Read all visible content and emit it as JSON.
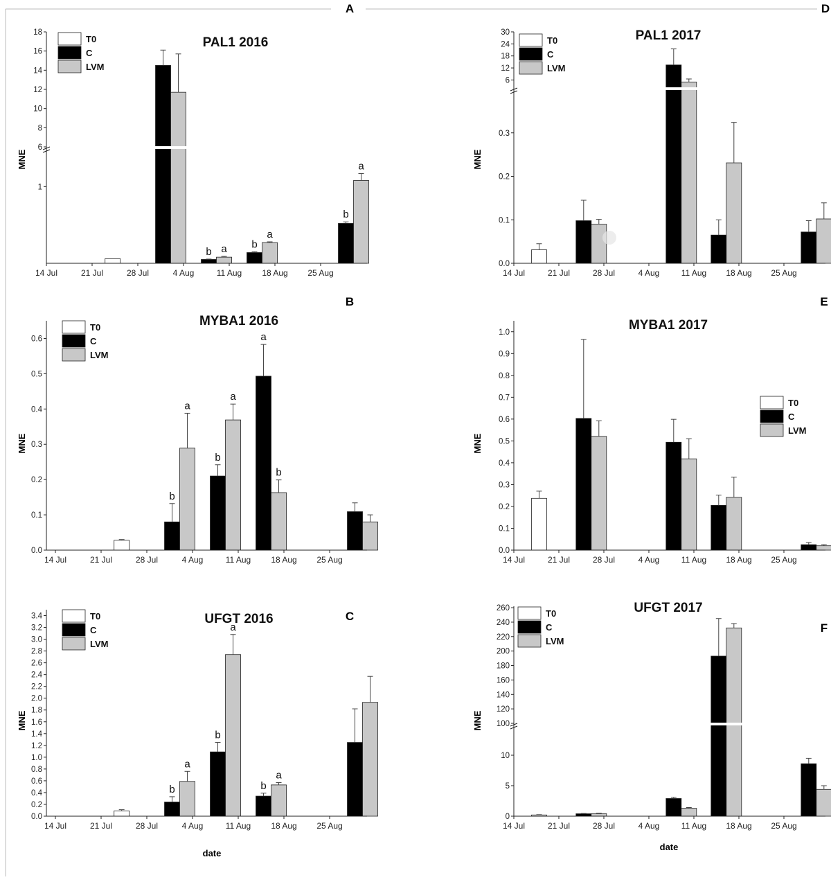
{
  "figure": {
    "top_left_letter": "A",
    "top_right_letter": "D"
  },
  "legend_labels": [
    "T0",
    "C",
    "LVM"
  ],
  "colors": {
    "T0": "#ffffff",
    "C": "#000000",
    "LVM": "#c8c8c8",
    "axis": "#222222",
    "error": "#444444"
  },
  "chart_data": [
    {
      "id": "A",
      "panel_letter": "A",
      "type": "bar",
      "title": "PAL1 2016",
      "ylabel": "MNE",
      "xlabel": "",
      "categories": [
        "14 Jul",
        "21 Jul",
        "28 Jul",
        "4 Aug",
        "11 Aug",
        "18 Aug",
        "25 Aug"
      ],
      "yticks_lower": [
        "1"
      ],
      "yticks_upper": [
        "6",
        "8",
        "10",
        "12",
        "14",
        "16",
        "18"
      ],
      "ylim_lower": [
        0,
        1.5
      ],
      "ylim_upper": [
        6,
        18
      ],
      "broken_axis": true,
      "legend_position": "top-left",
      "series": [
        {
          "key": "T0",
          "values": [
            null,
            0.06,
            null,
            null,
            null,
            null,
            null
          ],
          "errors": [
            null,
            0.0,
            null,
            null,
            null,
            null,
            null
          ],
          "letters": [
            null,
            null,
            null,
            null,
            null,
            null,
            null
          ]
        },
        {
          "key": "C",
          "values": [
            null,
            null,
            14.5,
            0.05,
            0.14,
            null,
            0.52
          ],
          "errors": [
            null,
            null,
            1.6,
            0.005,
            0.01,
            null,
            0.02
          ],
          "letters": [
            null,
            null,
            null,
            "b",
            "b",
            null,
            "b"
          ]
        },
        {
          "key": "LVM",
          "values": [
            null,
            null,
            11.7,
            0.08,
            0.27,
            null,
            1.08
          ],
          "errors": [
            null,
            null,
            4.0,
            0.01,
            0.01,
            null,
            0.09
          ],
          "letters": [
            null,
            null,
            null,
            "a",
            "a",
            null,
            "a"
          ]
        }
      ]
    },
    {
      "id": "B",
      "panel_letter": "B",
      "type": "bar",
      "title": "MYBA1 2016",
      "ylabel": "MNE",
      "xlabel": "",
      "categories": [
        "14 Jul",
        "21 Jul",
        "28 Jul",
        "4 Aug",
        "11 Aug",
        "18 Aug",
        "25 Aug"
      ],
      "yticks": [
        "0.0",
        "0.1",
        "0.2",
        "0.3",
        "0.4",
        "0.5",
        "0.6"
      ],
      "ylim": [
        0,
        0.65
      ],
      "broken_axis": false,
      "legend_position": "top-left",
      "series": [
        {
          "key": "T0",
          "values": [
            null,
            0.028,
            null,
            null,
            null,
            null,
            null
          ],
          "errors": [
            null,
            0.002,
            null,
            null,
            null,
            null,
            null
          ],
          "letters": [
            null,
            null,
            null,
            null,
            null,
            null,
            null
          ]
        },
        {
          "key": "C",
          "values": [
            null,
            null,
            0.08,
            0.21,
            0.493,
            null,
            0.109
          ],
          "errors": [
            null,
            null,
            0.052,
            0.032,
            0.09,
            null,
            0.025
          ],
          "letters": [
            null,
            null,
            "b",
            "b",
            "a",
            null,
            null
          ]
        },
        {
          "key": "LVM",
          "values": [
            null,
            null,
            0.289,
            0.369,
            0.163,
            null,
            0.08
          ],
          "errors": [
            null,
            null,
            0.099,
            0.045,
            0.036,
            null,
            0.02
          ],
          "letters": [
            null,
            null,
            "a",
            "a",
            "b",
            null,
            null
          ]
        }
      ]
    },
    {
      "id": "C",
      "panel_letter": "C",
      "type": "bar",
      "title": "UFGT 2016",
      "ylabel": "MNE",
      "xlabel": "date",
      "categories": [
        "14 Jul",
        "21 Jul",
        "28 Jul",
        "4 Aug",
        "11 Aug",
        "18 Aug",
        "25 Aug"
      ],
      "yticks": [
        "0.0",
        "0.2",
        "0.4",
        "0.6",
        "0.8",
        "1.0",
        "1.2",
        "1.4",
        "1.6",
        "1.8",
        "2.0",
        "2.2",
        "2.4",
        "2.6",
        "2.8",
        "3.0",
        "3.2",
        "3.4"
      ],
      "ylim": [
        0,
        3.5
      ],
      "broken_axis": false,
      "legend_position": "top-left",
      "series": [
        {
          "key": "T0",
          "values": [
            null,
            0.09,
            null,
            null,
            null,
            null,
            null
          ],
          "errors": [
            null,
            0.02,
            null,
            null,
            null,
            null,
            null
          ],
          "letters": [
            null,
            null,
            null,
            null,
            null,
            null,
            null
          ]
        },
        {
          "key": "C",
          "values": [
            null,
            null,
            0.24,
            1.09,
            0.34,
            null,
            1.25
          ],
          "errors": [
            null,
            null,
            0.09,
            0.16,
            0.05,
            null,
            0.57
          ],
          "letters": [
            null,
            null,
            "b",
            "b",
            "b",
            null,
            null
          ]
        },
        {
          "key": "LVM",
          "values": [
            null,
            null,
            0.59,
            2.74,
            0.53,
            null,
            1.93
          ],
          "errors": [
            null,
            null,
            0.17,
            0.34,
            0.04,
            null,
            0.44
          ],
          "letters": [
            null,
            null,
            "a",
            "a",
            "a",
            null,
            null
          ]
        }
      ]
    },
    {
      "id": "D",
      "panel_letter": "",
      "type": "bar",
      "title": "PAL1 2017",
      "ylabel": "MNE",
      "xlabel": "",
      "categories": [
        "14 Jul",
        "21 Jul",
        "28 Jul",
        "4 Aug",
        "11 Aug",
        "18 Aug",
        "25 Aug"
      ],
      "yticks_lower": [
        "0.0",
        "0.1",
        "0.2",
        "0.3"
      ],
      "yticks_upper": [
        "6",
        "12",
        "18",
        "24",
        "30"
      ],
      "ylim_lower": [
        0,
        0.4
      ],
      "ylim_upper": [
        2,
        30
      ],
      "broken_axis": true,
      "legend_position": "top-left",
      "series": [
        {
          "key": "T0",
          "values": [
            0.031,
            null,
            null,
            null,
            null,
            null,
            null
          ],
          "errors": [
            0.014,
            null,
            null,
            null,
            null,
            null,
            null
          ],
          "letters": [
            null,
            null,
            null,
            null,
            null,
            null,
            null
          ]
        },
        {
          "key": "C",
          "values": [
            null,
            0.098,
            null,
            13.5,
            0.065,
            null,
            0.072
          ],
          "errors": [
            null,
            0.047,
            null,
            8.0,
            0.035,
            null,
            0.026
          ],
          "letters": [
            null,
            null,
            null,
            null,
            null,
            null,
            null
          ]
        },
        {
          "key": "LVM",
          "values": [
            null,
            0.09,
            null,
            5.0,
            0.231,
            null,
            0.102
          ],
          "errors": [
            null,
            0.011,
            null,
            1.5,
            0.093,
            null,
            0.037
          ],
          "letters": [
            null,
            null,
            null,
            null,
            null,
            null,
            null
          ]
        }
      ]
    },
    {
      "id": "E",
      "panel_letter": "E",
      "type": "bar",
      "title": "MYBA1 2017",
      "ylabel": "MNE",
      "xlabel": "",
      "categories": [
        "14 Jul",
        "21 Jul",
        "28 Jul",
        "4 Aug",
        "11 Aug",
        "18 Aug",
        "25 Aug"
      ],
      "yticks": [
        "0.0",
        "0.1",
        "0.2",
        "0.3",
        "0.4",
        "0.5",
        "0.6",
        "0.7",
        "0.8",
        "0.9",
        "1.0"
      ],
      "ylim": [
        0,
        1.05
      ],
      "broken_axis": false,
      "legend_position": "right",
      "series": [
        {
          "key": "T0",
          "values": [
            0.237,
            null,
            null,
            null,
            null,
            null,
            null
          ],
          "errors": [
            0.033,
            null,
            null,
            null,
            null,
            null,
            null
          ],
          "letters": [
            null,
            null,
            null,
            null,
            null,
            null,
            null
          ]
        },
        {
          "key": "C",
          "values": [
            null,
            0.603,
            null,
            0.494,
            0.205,
            null,
            0.025
          ],
          "errors": [
            null,
            0.362,
            null,
            0.105,
            0.047,
            null,
            0.01
          ],
          "letters": [
            null,
            null,
            null,
            null,
            null,
            null,
            null
          ]
        },
        {
          "key": "LVM",
          "values": [
            null,
            0.521,
            null,
            0.418,
            0.242,
            null,
            0.02
          ],
          "errors": [
            null,
            0.071,
            null,
            0.092,
            0.092,
            null,
            0.005
          ],
          "letters": [
            null,
            null,
            null,
            null,
            null,
            null,
            null
          ]
        }
      ]
    },
    {
      "id": "F",
      "panel_letter": "F",
      "type": "bar",
      "title": "UFGT 2017",
      "ylabel": "MNE",
      "xlabel": "date",
      "categories": [
        "14 Jul",
        "21 Jul",
        "28 Jul",
        "4 Aug",
        "11 Aug",
        "18 Aug",
        "25 Aug"
      ],
      "yticks_lower": [
        "0",
        "5",
        "10"
      ],
      "yticks_upper": [
        "100",
        "120",
        "140",
        "160",
        "180",
        "200",
        "220",
        "240",
        "260"
      ],
      "ylim_lower": [
        0,
        15
      ],
      "ylim_upper": [
        100,
        262
      ],
      "broken_axis": true,
      "legend_position": "top-left",
      "series": [
        {
          "key": "T0",
          "values": [
            0.2,
            null,
            null,
            null,
            null,
            null,
            null
          ],
          "errors": [
            0.05,
            null,
            null,
            null,
            null,
            null,
            null
          ],
          "letters": [
            null,
            null,
            null,
            null,
            null,
            null,
            null
          ]
        },
        {
          "key": "C",
          "values": [
            null,
            0.4,
            null,
            2.9,
            193,
            null,
            8.6
          ],
          "errors": [
            null,
            0.05,
            null,
            0.2,
            52,
            null,
            0.9
          ],
          "letters": [
            null,
            null,
            null,
            null,
            null,
            null,
            null
          ]
        },
        {
          "key": "LVM",
          "values": [
            null,
            0.42,
            null,
            1.3,
            232,
            null,
            4.4
          ],
          "errors": [
            null,
            0.08,
            null,
            0.12,
            6,
            null,
            0.6
          ],
          "letters": [
            null,
            null,
            null,
            null,
            null,
            null,
            null
          ]
        }
      ]
    }
  ]
}
